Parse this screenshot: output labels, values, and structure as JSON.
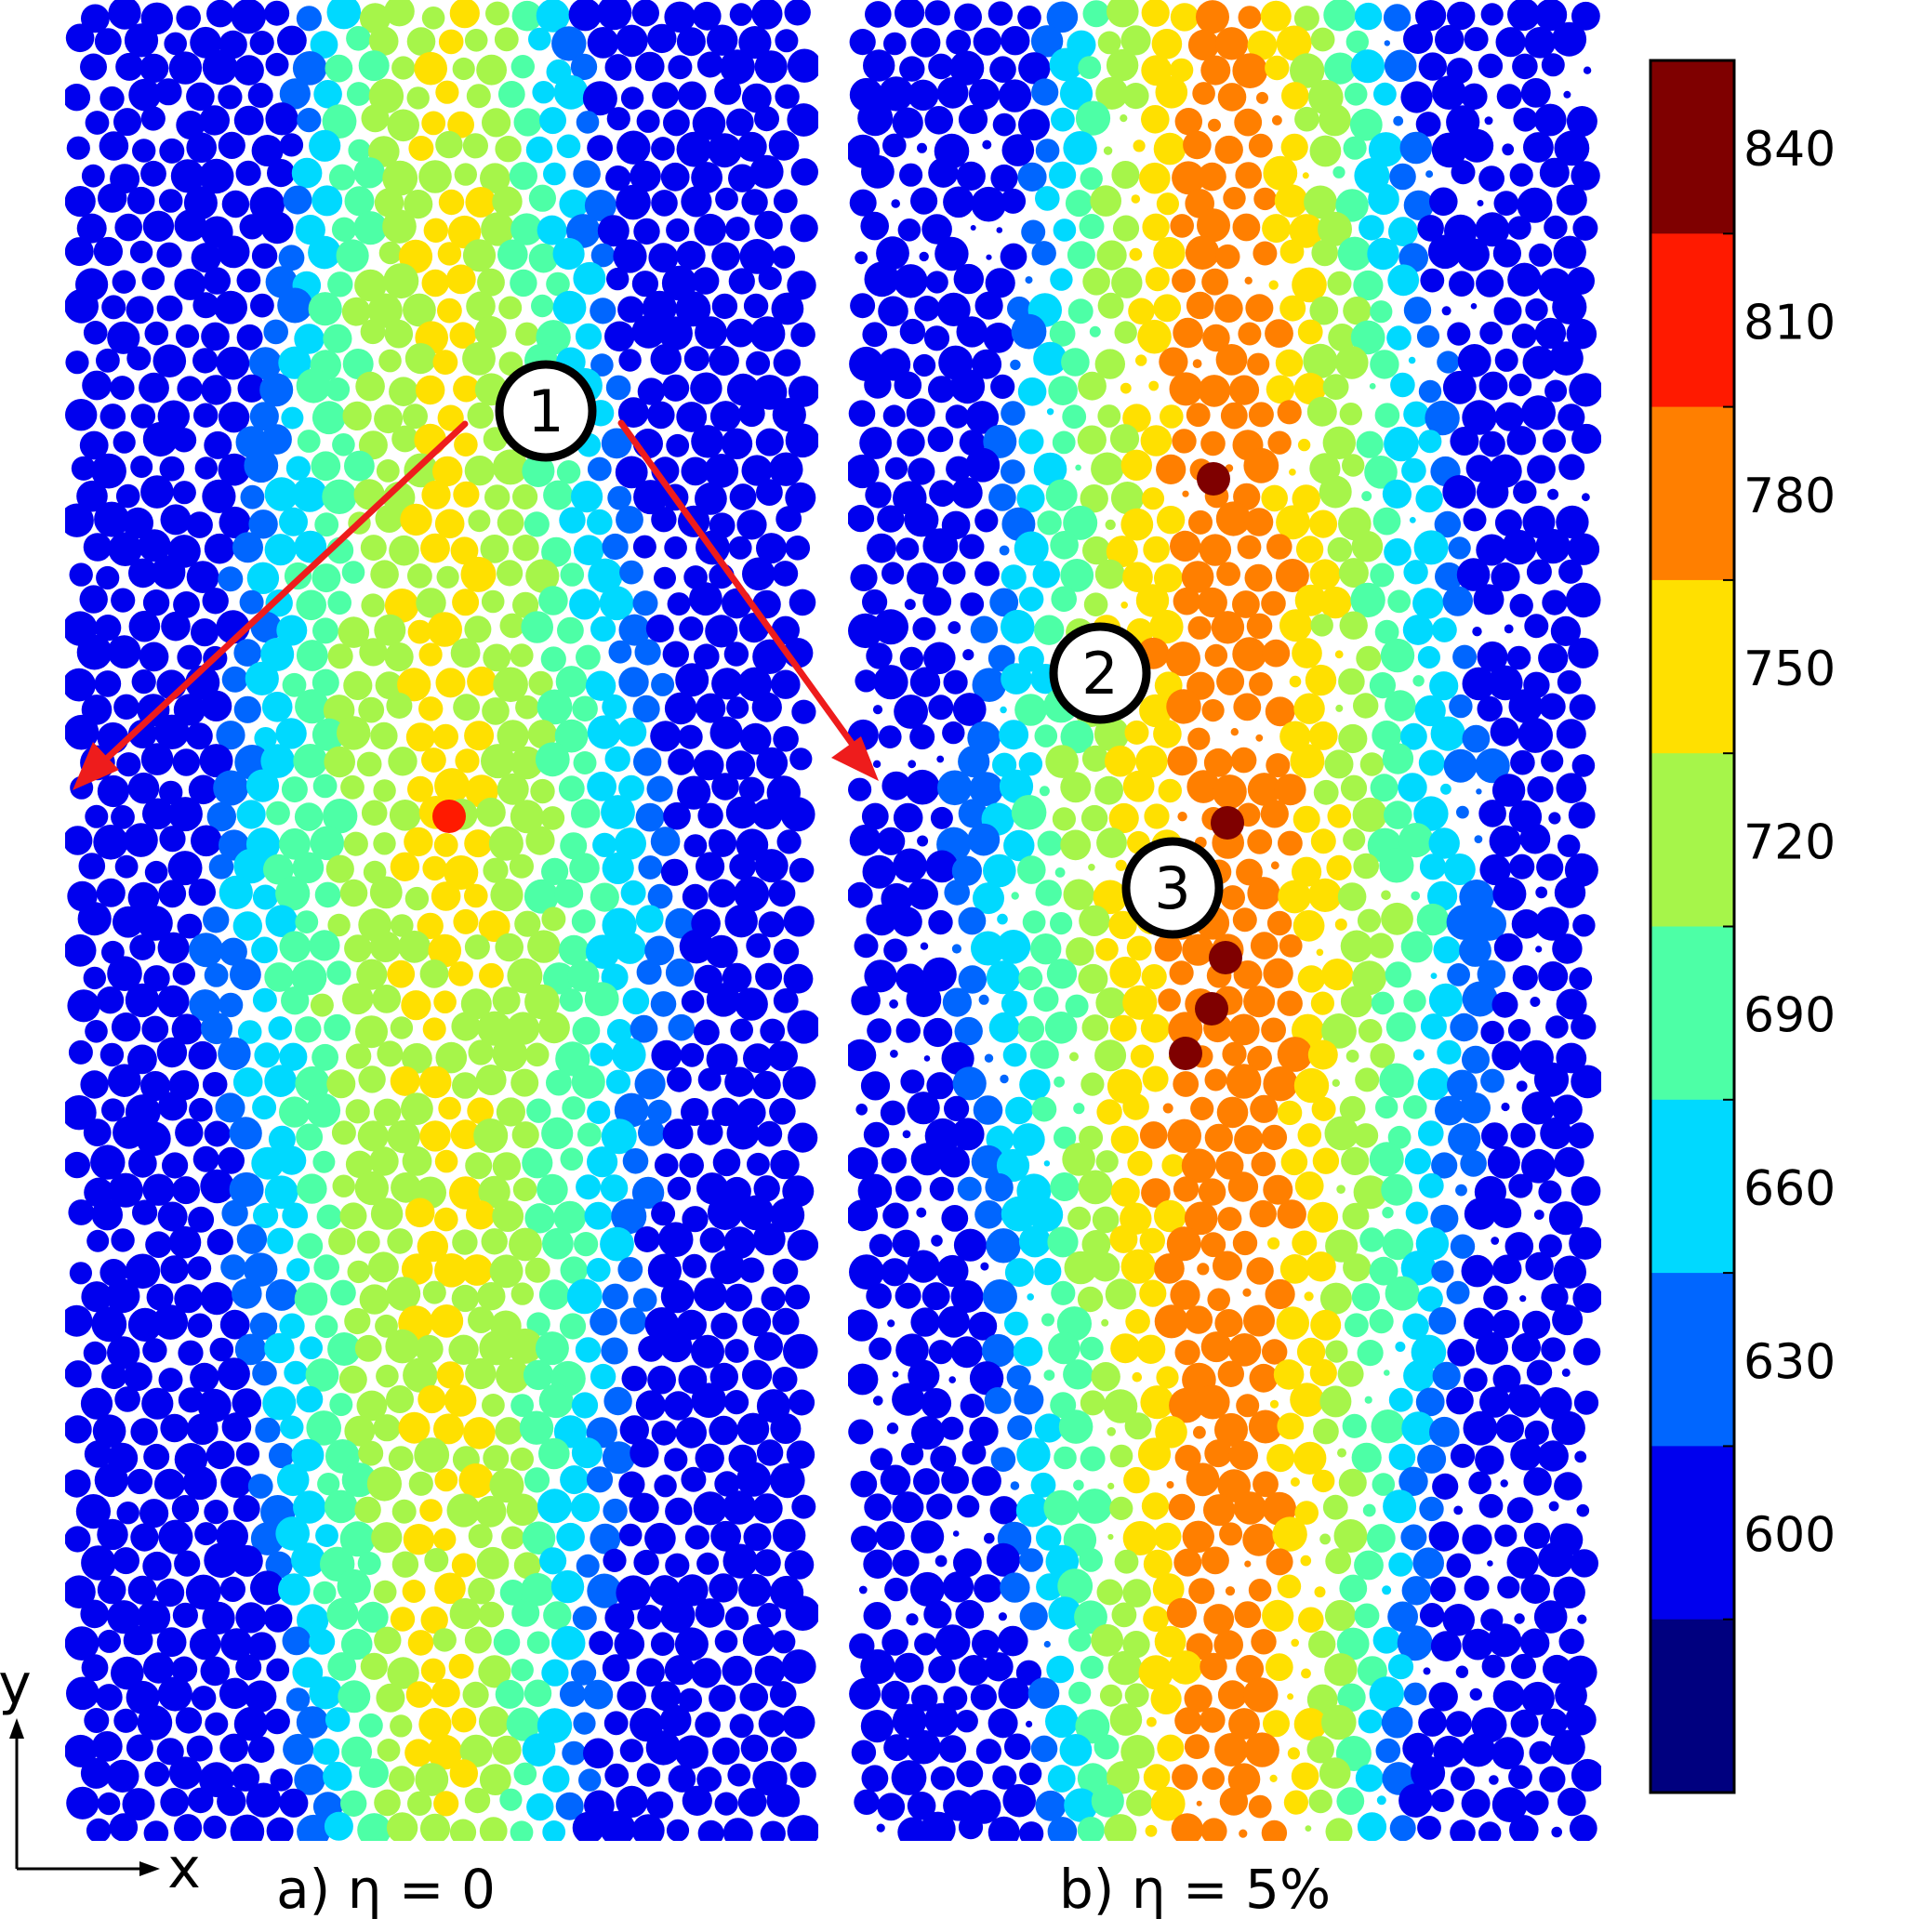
{
  "panels": [
    {
      "label": "a) η = 0",
      "markers": [
        {
          "label": "1"
        }
      ]
    },
    {
      "label": "b) η = 5%",
      "markers": [
        {
          "label": "2"
        },
        {
          "label": "3"
        }
      ]
    }
  ],
  "axes": {
    "x_label": "x",
    "y_label": "y"
  },
  "colorbar": {
    "ticks": [
      "840",
      "810",
      "780",
      "750",
      "720",
      "690",
      "660",
      "630",
      "600"
    ],
    "bands": [
      "#7f0000",
      "#ff1a00",
      "#ff7f00",
      "#ffe000",
      "#a6f54a",
      "#4dffa6",
      "#00d9ff",
      "#0066ff",
      "#0000ee",
      "#00007f"
    ]
  },
  "colors": {
    "arrow": "#ee1c1c",
    "marker_fill": "#ffffff",
    "marker_stroke": "#000000"
  }
}
